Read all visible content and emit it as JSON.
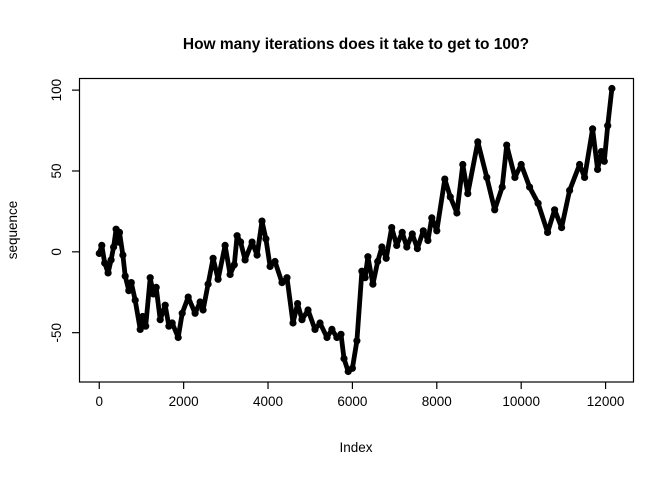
{
  "page": {
    "background_color": "#ffffff",
    "foreground_color": "#000000"
  },
  "chart_data": {
    "type": "line",
    "title": "How many iterations does it take to get to 100?",
    "xlabel": "Index",
    "ylabel": "sequence",
    "x_ticks": [
      0,
      2000,
      4000,
      6000,
      8000,
      10000,
      12000
    ],
    "y_ticks": [
      -50,
      0,
      50,
      100
    ],
    "xlim": [
      -480,
      12650
    ],
    "ylim": [
      -80.5,
      107.5
    ],
    "grid": false,
    "legend_position": "none",
    "line_color": "#000000",
    "marker": "dense-overplotted-circles",
    "series": [
      {
        "name": "sequence",
        "points": [
          [
            1,
            -1
          ],
          [
            60,
            4
          ],
          [
            130,
            -7
          ],
          [
            210,
            -13
          ],
          [
            280,
            -5
          ],
          [
            340,
            3
          ],
          [
            400,
            14
          ],
          [
            450,
            6
          ],
          [
            480,
            12
          ],
          [
            560,
            -2
          ],
          [
            615,
            -15
          ],
          [
            700,
            -24
          ],
          [
            760,
            -19
          ],
          [
            852,
            -30
          ],
          [
            970,
            -48
          ],
          [
            1030,
            -40
          ],
          [
            1100,
            -46
          ],
          [
            1207,
            -16
          ],
          [
            1280,
            -26
          ],
          [
            1350,
            -22
          ],
          [
            1444,
            -42
          ],
          [
            1562,
            -33
          ],
          [
            1650,
            -46
          ],
          [
            1728,
            -44
          ],
          [
            1870,
            -53
          ],
          [
            1965,
            -38
          ],
          [
            2107,
            -28
          ],
          [
            2272,
            -38
          ],
          [
            2391,
            -31
          ],
          [
            2462,
            -36
          ],
          [
            2580,
            -20
          ],
          [
            2699,
            -4
          ],
          [
            2817,
            -17
          ],
          [
            2983,
            4
          ],
          [
            3101,
            -14
          ],
          [
            3200,
            -8
          ],
          [
            3267,
            10
          ],
          [
            3350,
            6
          ],
          [
            3456,
            -5
          ],
          [
            3622,
            6
          ],
          [
            3740,
            -2
          ],
          [
            3858,
            19
          ],
          [
            3950,
            8
          ],
          [
            4048,
            -9
          ],
          [
            4166,
            -6
          ],
          [
            4332,
            -19
          ],
          [
            4450,
            -16
          ],
          [
            4592,
            -44
          ],
          [
            4700,
            -32
          ],
          [
            4805,
            -42
          ],
          [
            4947,
            -36
          ],
          [
            5113,
            -48
          ],
          [
            5231,
            -44
          ],
          [
            5397,
            -53
          ],
          [
            5515,
            -48
          ],
          [
            5633,
            -53
          ],
          [
            5730,
            -51
          ],
          [
            5800,
            -66
          ],
          [
            5900,
            -74
          ],
          [
            6000,
            -72
          ],
          [
            6107,
            -55
          ],
          [
            6225,
            -12
          ],
          [
            6300,
            -16
          ],
          [
            6367,
            -3
          ],
          [
            6485,
            -20
          ],
          [
            6600,
            -6
          ],
          [
            6700,
            3
          ],
          [
            6800,
            -4
          ],
          [
            6930,
            15
          ],
          [
            7050,
            4
          ],
          [
            7180,
            12
          ],
          [
            7290,
            3
          ],
          [
            7420,
            11
          ],
          [
            7540,
            2
          ],
          [
            7680,
            13
          ],
          [
            7790,
            7
          ],
          [
            7881,
            21
          ],
          [
            8000,
            13
          ],
          [
            8190,
            45
          ],
          [
            8320,
            34
          ],
          [
            8476,
            24
          ],
          [
            8616,
            54
          ],
          [
            8734,
            36
          ],
          [
            8971,
            68
          ],
          [
            9184,
            46
          ],
          [
            9373,
            26
          ],
          [
            9550,
            40
          ],
          [
            9657,
            66
          ],
          [
            9850,
            46
          ],
          [
            10000,
            54
          ],
          [
            10200,
            40
          ],
          [
            10400,
            30
          ],
          [
            10627,
            12
          ],
          [
            10793,
            26
          ],
          [
            10958,
            15
          ],
          [
            11148,
            38
          ],
          [
            11385,
            54
          ],
          [
            11503,
            46
          ],
          [
            11692,
            76
          ],
          [
            11811,
            51
          ],
          [
            11900,
            62
          ],
          [
            11970,
            56
          ],
          [
            12050,
            78
          ],
          [
            12150,
            101
          ]
        ]
      }
    ]
  }
}
